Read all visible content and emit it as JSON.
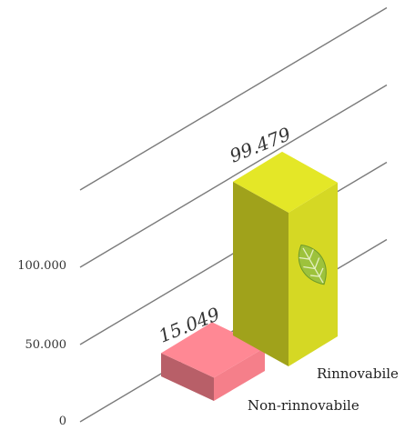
{
  "chart_data": {
    "type": "bar",
    "style": "3d-isometric",
    "categories": [
      "Non-rinnovabile",
      "Rinnovabile"
    ],
    "values": [
      15049,
      99479
    ],
    "value_labels": [
      "15.049",
      "99.479"
    ],
    "ylim": [
      0,
      150000
    ],
    "yticks": [
      0,
      50000,
      100000
    ],
    "ytick_labels": [
      "0",
      "50.000",
      "100.000"
    ],
    "grid": true,
    "colors": {
      "non_rinnovabile": "#f57f8a",
      "rinnovabile": "#d5d824",
      "grid": "#7a7a7a"
    },
    "icons": [
      "leaf-icon"
    ]
  }
}
